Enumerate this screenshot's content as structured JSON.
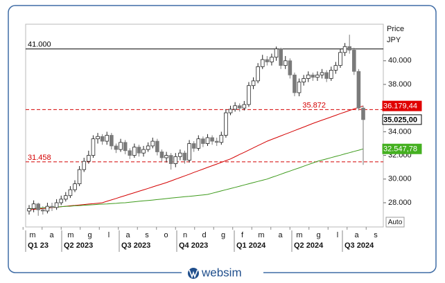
{
  "chart_data": {
    "type": "candlestick",
    "price_label": "Price",
    "currency": "JPY",
    "scale_mode": "Auto",
    "brand": "websim",
    "ylim": [
      25953,
      43088
    ],
    "yticks": [
      {
        "value": 28000,
        "label": "28.000"
      },
      {
        "value": 30000,
        "label": "30.000"
      },
      {
        "value": 32000,
        "label": "32.000"
      },
      {
        "value": 34000,
        "label": "34.000"
      },
      {
        "value": 38000,
        "label": "38.000"
      },
      {
        "value": 40000,
        "label": "40.000"
      }
    ],
    "months": [
      "m",
      "a",
      "m",
      "g",
      "l",
      "a",
      "s",
      "o",
      "n",
      "d",
      "g",
      "f",
      "m",
      "a",
      "m",
      "g",
      "l",
      "a",
      "s"
    ],
    "quarters": [
      "Q1 23",
      "Q2 2023",
      "Q3 2023",
      "Q4 2023",
      "Q1 2024",
      "Q2 2024",
      "Q3 2024"
    ],
    "up_color": "#ffffff",
    "down_color": "#7a7a7a",
    "open": [
      27300,
      27500,
      27900,
      27400,
      27300,
      27700,
      27600,
      28000,
      28300,
      28600,
      29100,
      29600,
      30800,
      31500,
      32000,
      33400,
      33600,
      33200,
      33700,
      32800,
      32500,
      33100,
      32400,
      32000,
      32700,
      32200,
      32500,
      32800,
      33200,
      32300,
      31800,
      32000,
      31300,
      31900,
      32200,
      31600,
      33000,
      32600,
      33400,
      33000,
      33500,
      33200,
      33100,
      33700,
      35600,
      35900,
      36200,
      36000,
      36300,
      37900,
      38300,
      39500,
      40100,
      39900,
      40300,
      41000,
      39600,
      40000,
      38800,
      37300,
      38200,
      38500,
      38800,
      38600,
      38800,
      39000,
      38500,
      39200,
      39600,
      40700,
      41200,
      40900,
      39100,
      36000
    ],
    "high": [
      27800,
      28200,
      28000,
      27700,
      28000,
      28000,
      28300,
      28600,
      28900,
      29400,
      29900,
      31100,
      31800,
      32400,
      33700,
      33900,
      33800,
      34000,
      33900,
      33000,
      33400,
      33300,
      32600,
      33000,
      32900,
      32800,
      33100,
      33500,
      33400,
      32500,
      32300,
      32200,
      32200,
      32500,
      32400,
      33300,
      33200,
      33700,
      33600,
      33800,
      33700,
      33500,
      34000,
      35900,
      36200,
      36500,
      36400,
      36600,
      38200,
      38600,
      39800,
      40500,
      40400,
      40600,
      41200,
      41100,
      40400,
      40200,
      39000,
      38500,
      38800,
      39100,
      39000,
      39100,
      39300,
      39200,
      39500,
      39900,
      41000,
      41500,
      42200,
      41100,
      39300,
      36200
    ],
    "low": [
      27000,
      27200,
      26900,
      27000,
      27100,
      27300,
      27400,
      27800,
      28100,
      28400,
      28900,
      29400,
      30600,
      31300,
      31800,
      33000,
      32900,
      32900,
      32500,
      32200,
      32300,
      32100,
      31700,
      31800,
      31900,
      31900,
      32300,
      32600,
      32000,
      31500,
      31400,
      30800,
      31000,
      31600,
      31300,
      31400,
      32300,
      32400,
      32700,
      32800,
      32900,
      32800,
      32900,
      33500,
      35400,
      35700,
      35700,
      35800,
      36100,
      37600,
      38100,
      39300,
      39600,
      39600,
      40000,
      39300,
      39300,
      38500,
      37000,
      37000,
      37900,
      38200,
      38300,
      38300,
      38500,
      38200,
      38300,
      38900,
      39400,
      40400,
      40600,
      38800,
      35800,
      31200
    ],
    "close": [
      27500,
      27900,
      27400,
      27300,
      27700,
      27600,
      28000,
      28300,
      28600,
      29100,
      29600,
      30800,
      31500,
      32000,
      33400,
      33600,
      33200,
      33700,
      32800,
      32500,
      33100,
      32400,
      32000,
      32700,
      32200,
      32500,
      32800,
      33200,
      32300,
      31800,
      32000,
      31300,
      31900,
      32200,
      31600,
      33000,
      32600,
      33400,
      33000,
      33500,
      33200,
      33100,
      33700,
      35600,
      35900,
      36200,
      36000,
      36300,
      37900,
      38300,
      39500,
      40100,
      39900,
      40300,
      41000,
      39600,
      40000,
      38800,
      37300,
      38200,
      38500,
      38800,
      38600,
      38800,
      39000,
      38500,
      39200,
      39600,
      40700,
      41200,
      40900,
      39100,
      36000,
      35025
    ],
    "series": [
      {
        "color": "#d40000",
        "values": [
          27400,
          27440,
          27480,
          27510,
          27550,
          27590,
          27620,
          27660,
          27700,
          27740,
          27770,
          27810,
          27850,
          27890,
          27920,
          27960,
          28000,
          28120,
          28240,
          28360,
          28490,
          28610,
          28730,
          28850,
          28970,
          29090,
          29210,
          29340,
          29460,
          29580,
          29700,
          29840,
          29990,
          30130,
          30270,
          30410,
          30560,
          30700,
          30840,
          30990,
          31130,
          31270,
          31410,
          31560,
          31700,
          31890,
          32080,
          32260,
          32450,
          32640,
          32830,
          33010,
          33200,
          33350,
          33500,
          33650,
          33800,
          33950,
          34100,
          34250,
          34400,
          34550,
          34700,
          34840,
          34980,
          35110,
          35250,
          35390,
          35530,
          35660,
          35800,
          35930,
          36060,
          36179
        ]
      },
      {
        "color": "#3c9a1a",
        "values": [
          27500,
          27520,
          27550,
          27570,
          27600,
          27620,
          27640,
          27670,
          27690,
          27710,
          27740,
          27760,
          27790,
          27810,
          27830,
          27860,
          27880,
          27900,
          27930,
          27950,
          27980,
          28000,
          28040,
          28080,
          28120,
          28160,
          28190,
          28230,
          28270,
          28310,
          28350,
          28390,
          28430,
          28470,
          28510,
          28540,
          28580,
          28620,
          28660,
          28700,
          28800,
          28900,
          29000,
          29100,
          29200,
          29300,
          29400,
          29500,
          29600,
          29700,
          29800,
          29900,
          30000,
          30140,
          30270,
          30410,
          30550,
          30680,
          30820,
          30950,
          31090,
          31230,
          31360,
          31500,
          31600,
          31710,
          31810,
          31920,
          32020,
          32130,
          32230,
          32340,
          32440,
          32548
        ]
      }
    ],
    "levels": [
      {
        "value": 41000,
        "label": "41.000",
        "color": "#000000",
        "dashed": false,
        "label_side": "left"
      },
      {
        "value": 35872,
        "label": "35.872",
        "color": "#d40000",
        "dashed": true,
        "label_side": "right"
      },
      {
        "value": 31458,
        "label": "31.458",
        "color": "#d40000",
        "dashed": true,
        "label_side": "left"
      }
    ],
    "tags": [
      {
        "value": 36179.44,
        "label": "36.179,44",
        "color": "#e00000",
        "text_color": "#ffffff"
      },
      {
        "value": 35025,
        "label": "35.025,00",
        "color": "#ffffff",
        "text_color": "#000000"
      },
      {
        "value": 32547.78,
        "label": "32.547,78",
        "color": "#44b020",
        "text_color": "#ffffff"
      }
    ]
  }
}
